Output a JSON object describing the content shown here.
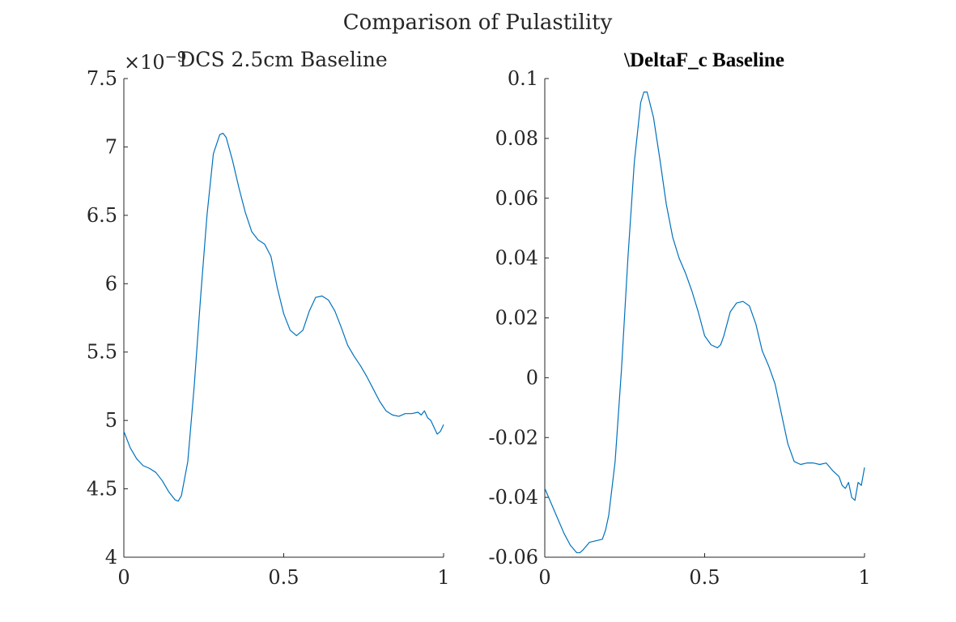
{
  "suptitle": "Comparison of Pulastility",
  "chart_data": [
    {
      "type": "line",
      "title": "DCS 2.5cm Baseline",
      "exponent_label": "×10",
      "exponent_power": "−9",
      "xlabel": "",
      "ylabel": "",
      "xlim": [
        0,
        1
      ],
      "ylim": [
        4,
        7.5
      ],
      "xticks": [
        "0",
        "0.5",
        "1"
      ],
      "yticks": [
        "4",
        "4.5",
        "5",
        "5.5",
        "6",
        "6.5",
        "7",
        "7.5"
      ],
      "grid": false,
      "color": "#0072BD",
      "series": [
        {
          "x": [
            0,
            0.02,
            0.04,
            0.06,
            0.08,
            0.1,
            0.12,
            0.14,
            0.16,
            0.17,
            0.18,
            0.2,
            0.22,
            0.24,
            0.26,
            0.28,
            0.3,
            0.31,
            0.32,
            0.34,
            0.36,
            0.38,
            0.4,
            0.42,
            0.44,
            0.46,
            0.48,
            0.5,
            0.52,
            0.54,
            0.56,
            0.58,
            0.6,
            0.62,
            0.64,
            0.66,
            0.68,
            0.7,
            0.72,
            0.74,
            0.76,
            0.78,
            0.8,
            0.82,
            0.84,
            0.86,
            0.88,
            0.9,
            0.92,
            0.93,
            0.94,
            0.95,
            0.96,
            0.97,
            0.98,
            0.99,
            1.0
          ],
          "y": [
            4.92,
            4.8,
            4.72,
            4.67,
            4.65,
            4.62,
            4.56,
            4.48,
            4.42,
            4.41,
            4.45,
            4.7,
            5.25,
            5.9,
            6.5,
            6.95,
            7.09,
            7.1,
            7.07,
            6.9,
            6.7,
            6.52,
            6.38,
            6.32,
            6.29,
            6.2,
            5.97,
            5.78,
            5.66,
            5.62,
            5.66,
            5.8,
            5.9,
            5.91,
            5.88,
            5.8,
            5.68,
            5.55,
            5.47,
            5.4,
            5.32,
            5.23,
            5.14,
            5.07,
            5.04,
            5.03,
            5.05,
            5.05,
            5.06,
            5.04,
            5.07,
            5.02,
            5.0,
            4.95,
            4.9,
            4.92,
            4.97
          ]
        }
      ]
    },
    {
      "type": "line",
      "title": "\\DeltaF_c Baseline",
      "xlabel": "",
      "ylabel": "",
      "xlim": [
        0,
        1
      ],
      "ylim": [
        -0.06,
        0.1
      ],
      "xticks": [
        "0",
        "0.5",
        "1"
      ],
      "yticks": [
        "-0.06",
        "-0.04",
        "-0.02",
        "0",
        "0.02",
        "0.04",
        "0.06",
        "0.08",
        "0.1"
      ],
      "grid": false,
      "color": "#0072BD",
      "series": [
        {
          "x": [
            0,
            0.02,
            0.04,
            0.06,
            0.08,
            0.1,
            0.11,
            0.12,
            0.14,
            0.16,
            0.18,
            0.19,
            0.2,
            0.22,
            0.24,
            0.26,
            0.28,
            0.3,
            0.31,
            0.32,
            0.34,
            0.36,
            0.38,
            0.4,
            0.42,
            0.44,
            0.46,
            0.48,
            0.5,
            0.52,
            0.54,
            0.55,
            0.56,
            0.58,
            0.6,
            0.62,
            0.64,
            0.66,
            0.68,
            0.7,
            0.72,
            0.74,
            0.76,
            0.78,
            0.8,
            0.82,
            0.84,
            0.86,
            0.88,
            0.9,
            0.92,
            0.93,
            0.94,
            0.95,
            0.96,
            0.97,
            0.98,
            0.99,
            1.0
          ],
          "y": [
            -0.037,
            -0.042,
            -0.047,
            -0.052,
            -0.056,
            -0.0585,
            -0.0585,
            -0.0575,
            -0.055,
            -0.0545,
            -0.054,
            -0.051,
            -0.046,
            -0.028,
            0.003,
            0.04,
            0.072,
            0.092,
            0.0955,
            0.0955,
            0.087,
            0.073,
            0.058,
            0.047,
            0.04,
            0.035,
            0.029,
            0.022,
            0.014,
            0.011,
            0.01,
            0.011,
            0.014,
            0.022,
            0.025,
            0.0255,
            0.024,
            0.018,
            0.009,
            0.004,
            -0.002,
            -0.012,
            -0.022,
            -0.028,
            -0.029,
            -0.0285,
            -0.0285,
            -0.029,
            -0.0285,
            -0.031,
            -0.033,
            -0.036,
            -0.037,
            -0.035,
            -0.04,
            -0.041,
            -0.035,
            -0.036,
            -0.03
          ]
        }
      ]
    }
  ]
}
